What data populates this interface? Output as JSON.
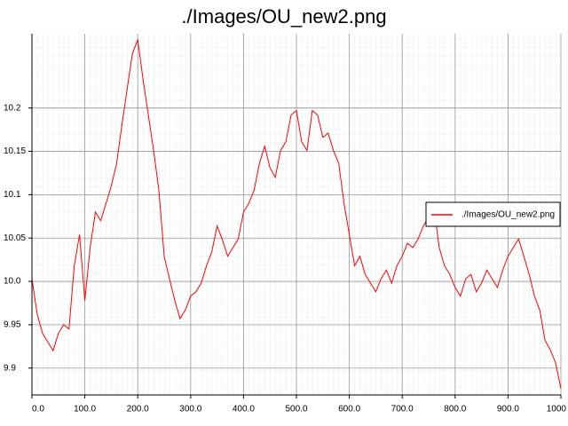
{
  "chart_data": {
    "type": "line",
    "title": "./Images/OU_new2.png",
    "x": [
      0,
      10,
      20,
      30,
      40,
      50,
      60,
      70,
      80,
      90,
      100,
      110,
      120,
      130,
      140,
      150,
      160,
      170,
      180,
      190,
      200,
      210,
      220,
      230,
      240,
      250,
      260,
      270,
      280,
      290,
      300,
      310,
      320,
      330,
      340,
      350,
      360,
      370,
      380,
      390,
      400,
      410,
      420,
      430,
      440,
      450,
      460,
      470,
      480,
      490,
      500,
      510,
      520,
      530,
      540,
      550,
      560,
      570,
      580,
      590,
      600,
      610,
      620,
      630,
      640,
      650,
      660,
      670,
      680,
      690,
      700,
      710,
      720,
      730,
      740,
      750,
      760,
      770,
      780,
      790,
      800,
      810,
      820,
      830,
      840,
      850,
      860,
      870,
      880,
      890,
      900,
      910,
      920,
      930,
      940,
      950,
      960,
      970,
      980,
      990,
      1000
    ],
    "series": [
      {
        "name": "./Images/OU_new2.png",
        "color": "#ff0000",
        "values": [
          10.003,
          9.962,
          9.94,
          9.93,
          9.92,
          9.94,
          9.95,
          9.945,
          10.018,
          10.054,
          9.978,
          10.039,
          10.08,
          10.07,
          10.09,
          10.11,
          10.136,
          10.18,
          10.222,
          10.263,
          10.279,
          10.233,
          10.192,
          10.151,
          10.105,
          10.029,
          10.003,
          9.978,
          9.957,
          9.967,
          9.983,
          9.988,
          9.998,
          10.018,
          10.034,
          10.064,
          10.048,
          10.029,
          10.039,
          10.049,
          10.08,
          10.09,
          10.105,
          10.136,
          10.156,
          10.131,
          10.12,
          10.151,
          10.161,
          10.192,
          10.197,
          10.161,
          10.151,
          10.197,
          10.192,
          10.166,
          10.171,
          10.151,
          10.136,
          10.09,
          10.054,
          10.018,
          10.029,
          10.008,
          9.998,
          9.988,
          10.003,
          10.013,
          9.998,
          10.018,
          10.029,
          10.044,
          10.039,
          10.049,
          10.064,
          10.074,
          10.085,
          10.039,
          10.018,
          10.008,
          9.993,
          9.983,
          10.003,
          10.008,
          9.988,
          9.998,
          10.013,
          10.003,
          9.993,
          10.013,
          10.029,
          10.039,
          10.049,
          10.029,
          10.008,
          9.983,
          9.967,
          9.932,
          9.921,
          9.906,
          9.876
        ]
      }
    ],
    "xlim": [
      0,
      1000
    ],
    "ylim": [
      9.869,
      10.2857
    ],
    "xticks": [
      {
        "value": 0,
        "label": "0.0"
      },
      {
        "value": 100,
        "label": "100.0"
      },
      {
        "value": 200,
        "label": "200.0"
      },
      {
        "value": 300,
        "label": "300.0"
      },
      {
        "value": 400,
        "label": "400.0"
      },
      {
        "value": 500,
        "label": "500.0"
      },
      {
        "value": 600,
        "label": "600.0"
      },
      {
        "value": 700,
        "label": "700.0"
      },
      {
        "value": 800,
        "label": "800.0"
      },
      {
        "value": 900,
        "label": "900.0"
      },
      {
        "value": 1000,
        "label": "1000"
      }
    ],
    "yticks": [
      9.9,
      9.95,
      {
        "value": 10.0,
        "label": "10.0"
      },
      10.05,
      10.1,
      10.15,
      10.2
    ],
    "grid": true,
    "legend": "right"
  }
}
